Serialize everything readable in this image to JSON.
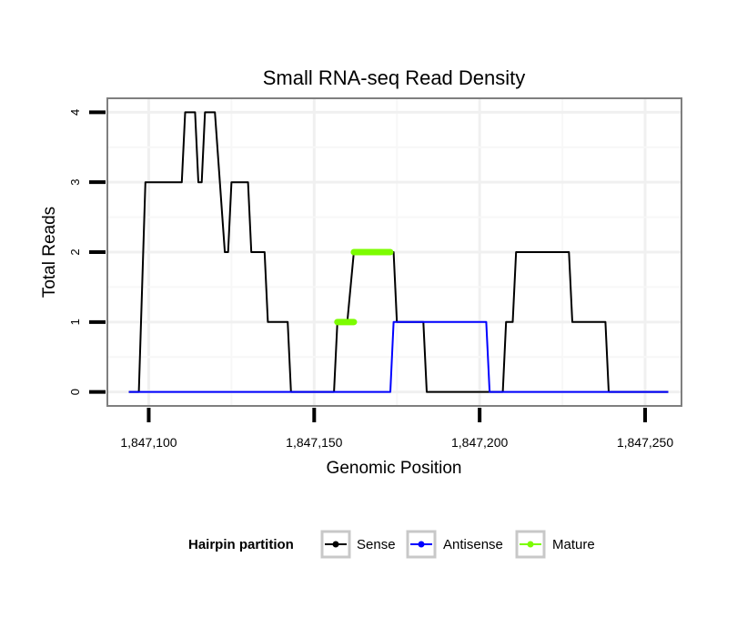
{
  "chart_data": {
    "type": "line",
    "title": "Small RNA-seq Read Density",
    "xlabel": "Genomic Position",
    "ylabel": "Total Reads",
    "xlim": [
      1847087.5,
      1847261
    ],
    "ylim": [
      -0.2,
      4.2
    ],
    "x_ticks": [
      1847100,
      1847150,
      1847200,
      1847250
    ],
    "x_tick_labels": [
      "1,847,100",
      "1,847,150",
      "1,847,200",
      "1,847,250"
    ],
    "y_ticks": [
      0,
      1,
      2,
      3,
      4
    ],
    "y_tick_labels": [
      "0",
      "1",
      "2",
      "3",
      "4"
    ],
    "grid": true,
    "legend": {
      "title": "Hairpin partition",
      "position": "bottom",
      "entries": [
        "Sense",
        "Antisense",
        "Mature"
      ]
    },
    "series": [
      {
        "name": "Sense",
        "color": "#000000",
        "x": [
          1847094,
          1847097,
          1847099,
          1847110,
          1847111,
          1847114,
          1847115,
          1847116,
          1847117,
          1847120,
          1847123,
          1847124,
          1847125,
          1847130,
          1847131,
          1847135,
          1847136,
          1847142,
          1847143,
          1847156,
          1847157,
          1847160,
          1847162,
          1847174,
          1847175,
          1847183,
          1847184,
          1847204,
          1847207,
          1847208,
          1847210,
          1847211,
          1847227,
          1847228,
          1847238,
          1847239,
          1847257
        ],
        "y": [
          0,
          0,
          3,
          3,
          4,
          4,
          3,
          3,
          4,
          4,
          2,
          2,
          3,
          3,
          2,
          2,
          1,
          1,
          0,
          0,
          1,
          1,
          2,
          2,
          1,
          1,
          0,
          0,
          0,
          1,
          1,
          2,
          2,
          1,
          1,
          0,
          0
        ]
      },
      {
        "name": "Antisense",
        "color": "#0000ff",
        "x": [
          1847094,
          1847173,
          1847174,
          1847202,
          1847203,
          1847257
        ],
        "y": [
          0,
          0,
          1,
          1,
          0,
          0
        ]
      },
      {
        "name": "Mature",
        "color": "#7cfc00",
        "segments": [
          {
            "x": [
              1847157,
              1847162
            ],
            "y": [
              1,
              1
            ]
          },
          {
            "x": [
              1847162,
              1847173
            ],
            "y": [
              2,
              2
            ]
          }
        ]
      }
    ]
  }
}
